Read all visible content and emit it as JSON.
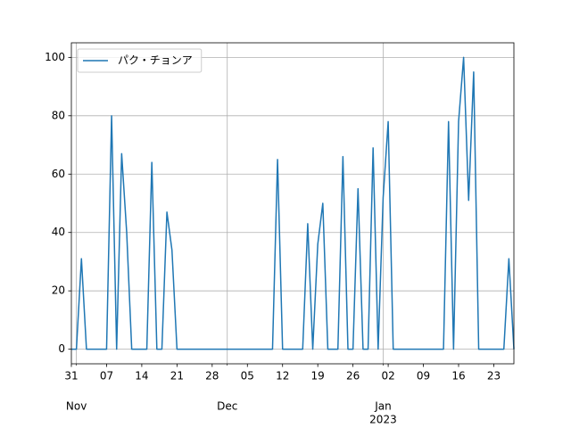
{
  "chart_data": {
    "type": "line",
    "x": [
      "2022-10-31",
      "2022-11-01",
      "2022-11-02",
      "2022-11-03",
      "2022-11-04",
      "2022-11-05",
      "2022-11-06",
      "2022-11-07",
      "2022-11-08",
      "2022-11-09",
      "2022-11-10",
      "2022-11-11",
      "2022-11-12",
      "2022-11-13",
      "2022-11-14",
      "2022-11-15",
      "2022-11-16",
      "2022-11-17",
      "2022-11-18",
      "2022-11-19",
      "2022-11-20",
      "2022-11-21",
      "2022-11-22",
      "2022-11-23",
      "2022-11-24",
      "2022-11-25",
      "2022-11-26",
      "2022-11-27",
      "2022-11-28",
      "2022-11-29",
      "2022-11-30",
      "2022-12-01",
      "2022-12-02",
      "2022-12-03",
      "2022-12-04",
      "2022-12-05",
      "2022-12-06",
      "2022-12-07",
      "2022-12-08",
      "2022-12-09",
      "2022-12-10",
      "2022-12-11",
      "2022-12-12",
      "2022-12-13",
      "2022-12-14",
      "2022-12-15",
      "2022-12-16",
      "2022-12-17",
      "2022-12-18",
      "2022-12-19",
      "2022-12-20",
      "2022-12-21",
      "2022-12-22",
      "2022-12-23",
      "2022-12-24",
      "2022-12-25",
      "2022-12-26",
      "2022-12-27",
      "2022-12-28",
      "2022-12-29",
      "2022-12-30",
      "2022-12-31",
      "2023-01-01",
      "2023-01-02",
      "2023-01-03",
      "2023-01-04",
      "2023-01-05",
      "2023-01-06",
      "2023-01-07",
      "2023-01-08",
      "2023-01-09",
      "2023-01-10",
      "2023-01-11",
      "2023-01-12",
      "2023-01-13",
      "2023-01-14",
      "2023-01-15",
      "2023-01-16",
      "2023-01-17",
      "2023-01-18",
      "2023-01-19",
      "2023-01-20",
      "2023-01-21",
      "2023-01-22",
      "2023-01-23",
      "2023-01-24",
      "2023-01-25",
      "2023-01-26",
      "2023-01-27"
    ],
    "series": [
      {
        "name": "パク・チョンア",
        "color": "#1f77b4",
        "values": [
          0,
          0,
          31,
          0,
          0,
          0,
          0,
          0,
          80,
          0,
          67,
          40,
          0,
          0,
          0,
          0,
          64,
          0,
          0,
          47,
          34,
          0,
          0,
          0,
          0,
          0,
          0,
          0,
          0,
          0,
          0,
          0,
          0,
          0,
          0,
          0,
          0,
          0,
          0,
          0,
          0,
          65,
          0,
          0,
          0,
          0,
          0,
          43,
          0,
          36,
          50,
          0,
          0,
          0,
          66,
          0,
          0,
          55,
          0,
          0,
          69,
          0,
          52,
          78,
          0,
          0,
          0,
          0,
          0,
          0,
          0,
          0,
          0,
          0,
          0,
          78,
          0,
          78,
          100,
          51,
          95,
          0,
          0,
          0,
          0,
          0,
          0,
          31,
          0
        ]
      }
    ],
    "xlim": [
      "2022-10-31",
      "2023-01-27"
    ],
    "xticks": [
      {
        "value": "2022-10-31",
        "label": "31"
      },
      {
        "value": "2022-11-07",
        "label": "07"
      },
      {
        "value": "2022-11-14",
        "label": "14"
      },
      {
        "value": "2022-11-21",
        "label": "21"
      },
      {
        "value": "2022-11-28",
        "label": "28"
      },
      {
        "value": "2022-12-05",
        "label": "05"
      },
      {
        "value": "2022-12-12",
        "label": "12"
      },
      {
        "value": "2022-12-19",
        "label": "19"
      },
      {
        "value": "2022-12-26",
        "label": "26"
      },
      {
        "value": "2023-01-02",
        "label": "02"
      },
      {
        "value": "2023-01-09",
        "label": "09"
      },
      {
        "value": "2023-01-16",
        "label": "16"
      },
      {
        "value": "2023-01-23",
        "label": "23"
      }
    ],
    "month_ticks": [
      {
        "value": "2022-11-01",
        "label": "Nov"
      },
      {
        "value": "2022-12-01",
        "label": "Dec"
      },
      {
        "value": "2023-01-01",
        "label": "Jan",
        "year": "2023"
      }
    ],
    "ylim": [
      -5,
      105
    ],
    "yticks": [
      0,
      20,
      40,
      60,
      80,
      100
    ],
    "grid": true,
    "legend": "upper left"
  }
}
